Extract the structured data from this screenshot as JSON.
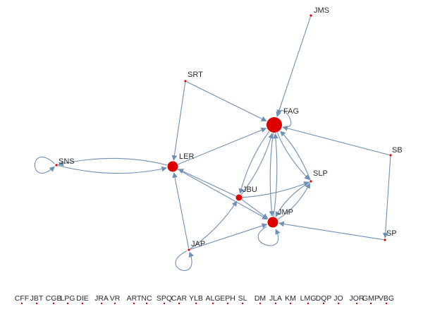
{
  "graph": {
    "node_color": "#dd0000",
    "edge_color": "#6f8fb3",
    "nodes": [
      {
        "id": "JMS",
        "size": "small"
      },
      {
        "id": "SRT",
        "size": "small"
      },
      {
        "id": "FAG",
        "size": "large"
      },
      {
        "id": "SB",
        "size": "small"
      },
      {
        "id": "SNS",
        "size": "small"
      },
      {
        "id": "LER",
        "size": "medium"
      },
      {
        "id": "SLP",
        "size": "small"
      },
      {
        "id": "JBU",
        "size": "medium-small"
      },
      {
        "id": "JMP",
        "size": "medium"
      },
      {
        "id": "SP",
        "size": "small"
      },
      {
        "id": "JAP",
        "size": "small"
      }
    ],
    "edges": [
      {
        "from": "JMS",
        "to": "FAG"
      },
      {
        "from": "SRT",
        "to": "FAG"
      },
      {
        "from": "SRT",
        "to": "LER"
      },
      {
        "from": "FAG",
        "to": "FAG"
      },
      {
        "from": "SB",
        "to": "FAG"
      },
      {
        "from": "SB",
        "to": "SP"
      },
      {
        "from": "SNS",
        "to": "SNS"
      },
      {
        "from": "SNS",
        "to": "LER"
      },
      {
        "from": "LER",
        "to": "SNS"
      },
      {
        "from": "LER",
        "to": "FAG"
      },
      {
        "from": "LER",
        "to": "JMP"
      },
      {
        "from": "FAG",
        "to": "SLP"
      },
      {
        "from": "SLP",
        "to": "FAG"
      },
      {
        "from": "FAG",
        "to": "JMP"
      },
      {
        "from": "JMP",
        "to": "FAG"
      },
      {
        "from": "FAG",
        "to": "JBU"
      },
      {
        "from": "JBU",
        "to": "FAG"
      },
      {
        "from": "JBU",
        "to": "SLP"
      },
      {
        "from": "JBU",
        "to": "LER"
      },
      {
        "from": "JBU",
        "to": "JMP"
      },
      {
        "from": "SLP",
        "to": "JMP"
      },
      {
        "from": "JMP",
        "to": "SLP"
      },
      {
        "from": "JMP",
        "to": "JMP"
      },
      {
        "from": "SP",
        "to": "JMP"
      },
      {
        "from": "JAP",
        "to": "JAP"
      },
      {
        "from": "JAP",
        "to": "LER"
      },
      {
        "from": "JAP",
        "to": "JBU"
      },
      {
        "from": "JAP",
        "to": "JMP"
      }
    ],
    "isolated_nodes": [
      "CFF",
      "JBT",
      "CGB",
      "LPG",
      "DIE",
      "JRA",
      "VR",
      "ART",
      "NC",
      "SPQ",
      "CAR",
      "YLB",
      "ALG",
      "EPH",
      "SL",
      "DM",
      "JLA",
      "KM",
      "LMG",
      "DQP",
      "JO",
      "JOR",
      "GMP",
      "VBG"
    ]
  }
}
